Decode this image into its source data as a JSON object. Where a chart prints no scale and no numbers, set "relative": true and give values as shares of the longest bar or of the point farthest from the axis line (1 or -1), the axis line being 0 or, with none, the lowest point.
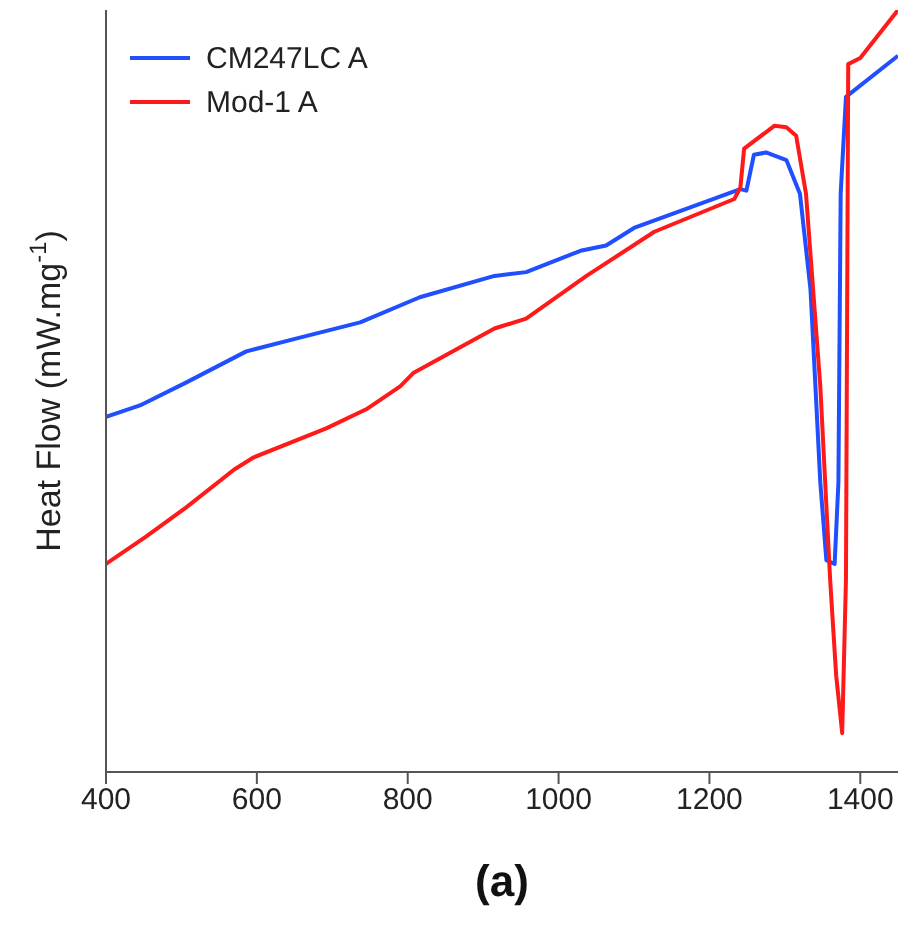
{
  "chart_data": {
    "type": "line",
    "title": "(a)",
    "ylabel": "Heat Flow (mW.mg$^{-1}$)",
    "relative": true,
    "xlim": [
      400,
      1450
    ],
    "xticks": [
      400,
      600,
      800,
      1000,
      1200,
      1400
    ],
    "legend": "top left",
    "grid": false,
    "marker": "none",
    "line_style": "solid",
    "series": [
      {
        "name": "CM247LC A",
        "color": "#1f4fff",
        "x": [
          400,
          445,
          506,
          586,
          657,
          737,
          816,
          915,
          957,
          1029,
          1063,
          1100,
          1241,
          1249,
          1259,
          1275,
          1302,
          1320,
          1334,
          1347,
          1355,
          1366,
          1371,
          1374,
          1381,
          1450
        ],
        "values": [
          0.466,
          0.481,
          0.511,
          0.552,
          0.57,
          0.59,
          0.623,
          0.651,
          0.656,
          0.684,
          0.691,
          0.714,
          0.765,
          0.763,
          0.81,
          0.813,
          0.803,
          0.759,
          0.633,
          0.38,
          0.278,
          0.273,
          0.38,
          0.759,
          0.886,
          0.94
        ]
      },
      {
        "name": "Mod-1 A",
        "color": "#ff1a1a",
        "x": [
          400,
          453,
          506,
          570,
          596,
          692,
          745,
          790,
          808,
          915,
          957,
          1037,
          1127,
          1233,
          1241,
          1246,
          1286,
          1302,
          1315,
          1328,
          1347,
          1360,
          1368,
          1376,
          1381,
          1384,
          1400,
          1450
        ],
        "values": [
          0.273,
          0.309,
          0.347,
          0.397,
          0.413,
          0.451,
          0.476,
          0.506,
          0.524,
          0.582,
          0.595,
          0.651,
          0.709,
          0.752,
          0.767,
          0.818,
          0.848,
          0.846,
          0.835,
          0.759,
          0.506,
          0.253,
          0.127,
          0.051,
          0.253,
          0.929,
          0.937,
          1.0
        ]
      }
    ]
  }
}
